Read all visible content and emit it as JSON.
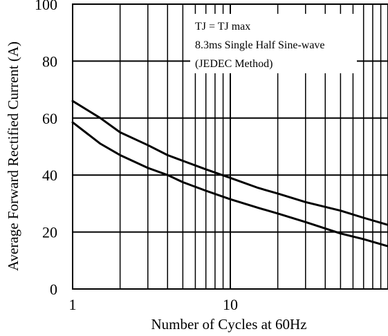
{
  "chart_data": {
    "type": "line",
    "xlabel": "Number of Cycles at 60Hz",
    "ylabel": "Average Forward Rectified Current (A)",
    "x_scale": "log",
    "xlim": [
      1,
      100
    ],
    "ylim": [
      0,
      100
    ],
    "x_ticks": [
      1,
      10
    ],
    "x_tick_labels": [
      "1",
      "10"
    ],
    "y_ticks": [
      0,
      20,
      40,
      60,
      80,
      100
    ],
    "y_tick_labels": [
      "0",
      "20",
      "40",
      "60",
      "80",
      "100"
    ],
    "grid": true,
    "annotation": {
      "lines": [
        "TJ = TJ max",
        "8.3ms Single Half Sine-wave",
        "(JEDEC Method)"
      ]
    },
    "series": [
      {
        "x": [
          1,
          1.5,
          2,
          3,
          4,
          5,
          7,
          10,
          15,
          20,
          30,
          50,
          70,
          100
        ],
        "y": [
          66,
          60,
          55,
          50.5,
          47,
          45,
          42,
          39,
          35.5,
          33.5,
          30.5,
          27.5,
          25,
          22.5
        ]
      },
      {
        "x": [
          1,
          1.5,
          2,
          3,
          4,
          5,
          7,
          10,
          15,
          20,
          30,
          50,
          70,
          100
        ],
        "y": [
          58.5,
          51,
          47,
          42.5,
          40,
          37.5,
          34.5,
          31.5,
          28.5,
          26.5,
          23.5,
          19.5,
          17.5,
          15
        ]
      }
    ],
    "colors": {
      "line": "#000000",
      "grid": "#000000",
      "background": "#ffffff"
    }
  }
}
